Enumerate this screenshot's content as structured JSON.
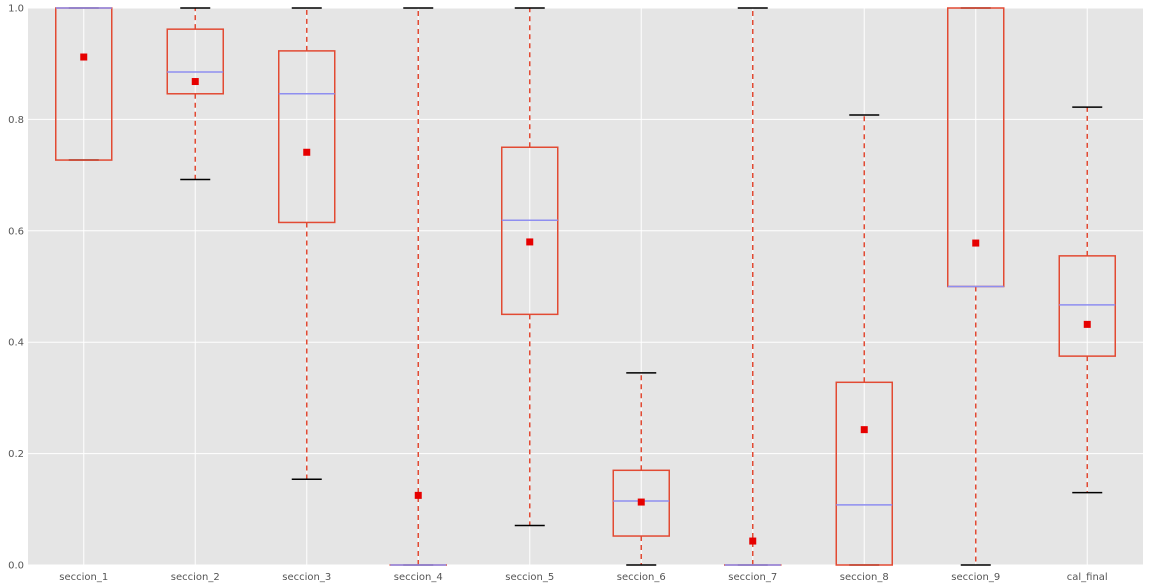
{
  "chart_data": {
    "type": "box",
    "categories": [
      "seccion_1",
      "seccion_2",
      "seccion_3",
      "seccion_4",
      "seccion_5",
      "seccion_6",
      "seccion_7",
      "seccion_8",
      "seccion_9",
      "cal_final"
    ],
    "boxes": [
      {
        "whisker_low": 0.727,
        "q1": 0.727,
        "median": 1.0,
        "q3": 1.0,
        "whisker_high": 1.0,
        "mean": 0.912
      },
      {
        "whisker_low": 0.692,
        "q1": 0.846,
        "median": 0.885,
        "q3": 0.962,
        "whisker_high": 1.0,
        "mean": 0.868
      },
      {
        "whisker_low": 0.154,
        "q1": 0.615,
        "median": 0.846,
        "q3": 0.923,
        "whisker_high": 1.0,
        "mean": 0.741
      },
      {
        "whisker_low": 0.0,
        "q1": 0.0,
        "median": 0.0,
        "q3": 0.0,
        "whisker_high": 1.0,
        "mean": 0.125
      },
      {
        "whisker_low": 0.071,
        "q1": 0.45,
        "median": 0.619,
        "q3": 0.75,
        "whisker_high": 1.0,
        "mean": 0.58
      },
      {
        "whisker_low": 0.0,
        "q1": 0.052,
        "median": 0.115,
        "q3": 0.17,
        "whisker_high": 0.345,
        "mean": 0.113
      },
      {
        "whisker_low": 0.0,
        "q1": 0.0,
        "median": 0.0,
        "q3": 0.0,
        "whisker_high": 1.0,
        "mean": 0.043
      },
      {
        "whisker_low": 0.0,
        "q1": 0.0,
        "median": 0.108,
        "q3": 0.328,
        "whisker_high": 0.808,
        "mean": 0.243
      },
      {
        "whisker_low": 0.0,
        "q1": 0.5,
        "median": 0.5,
        "q3": 1.0,
        "whisker_high": 1.0,
        "mean": 0.578
      },
      {
        "whisker_low": 0.13,
        "q1": 0.375,
        "median": 0.467,
        "q3": 0.555,
        "whisker_high": 0.822,
        "mean": 0.432
      }
    ],
    "yticks": [
      "0.0",
      "0.2",
      "0.4",
      "0.6",
      "0.8",
      "1.0"
    ],
    "ylim": [
      0,
      1
    ],
    "grid": true,
    "title": "",
    "xlabel": "",
    "ylabel": "",
    "colors": {
      "background": "#e5e5e5",
      "grid": "#ffffff",
      "box": "#e24a33",
      "median": "#8e8ef0",
      "whisker_cap": "#000000",
      "mean_marker": "#e60000"
    }
  }
}
